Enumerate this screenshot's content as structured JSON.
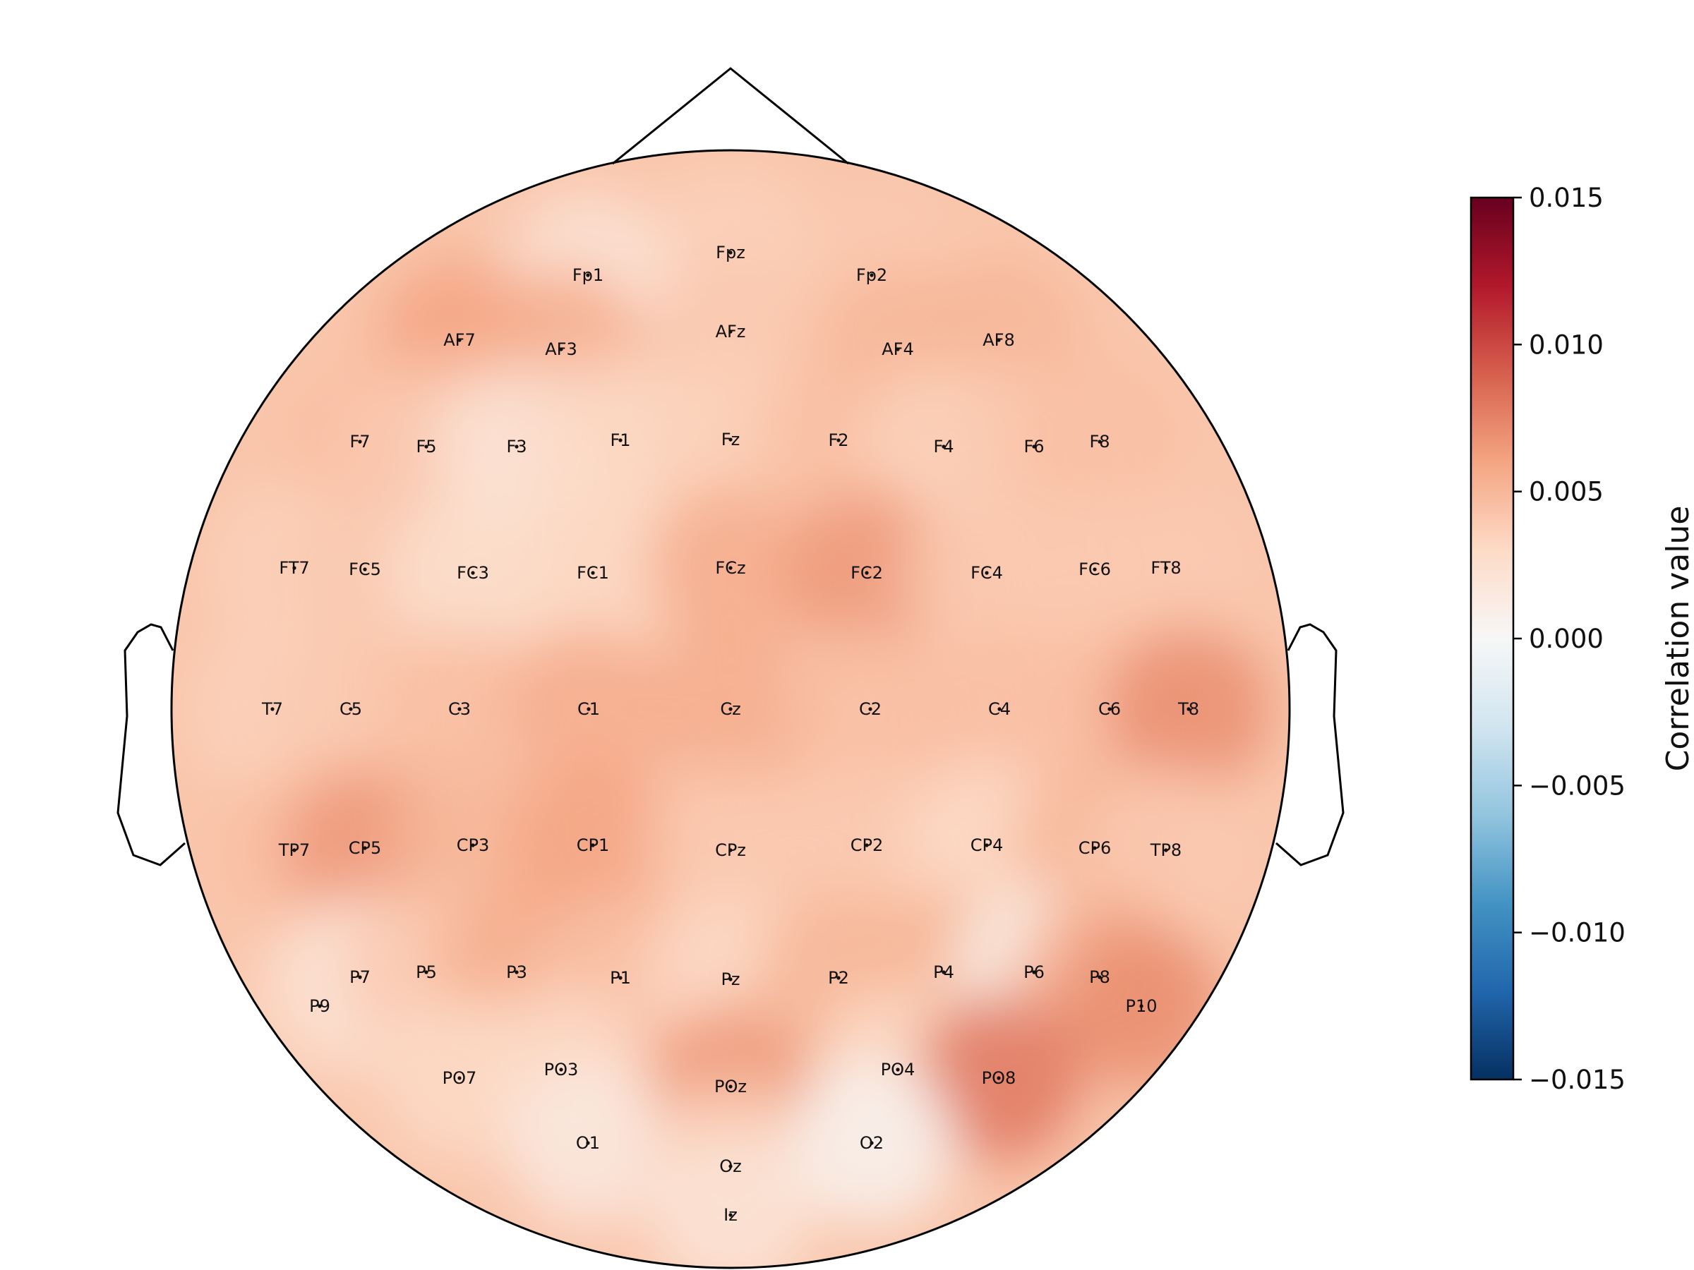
{
  "chart_data": {
    "type": "heatmap",
    "title": "",
    "colorbar": {
      "label": "Correlation value",
      "vmin": -0.015,
      "vmax": 0.015,
      "ticks": [
        "0.015",
        "0.010",
        "0.005",
        "0.000",
        "−0.005",
        "−0.010",
        "−0.015"
      ],
      "tick_values": [
        0.015,
        0.01,
        0.005,
        0.0,
        -0.005,
        -0.01,
        -0.015
      ],
      "colormap": "RdBu_r",
      "stops": [
        "#053061",
        "#2166ac",
        "#4393c3",
        "#92c5de",
        "#d1e5f0",
        "#f7f7f7",
        "#fddbc7",
        "#f4a582",
        "#d6604d",
        "#b2182b",
        "#67001f"
      ]
    },
    "electrodes": [
      {
        "name": "Fpz",
        "value": 0.0035
      },
      {
        "name": "Fp1",
        "value": 0.002
      },
      {
        "name": "Fp2",
        "value": 0.004
      },
      {
        "name": "AF7",
        "value": 0.006
      },
      {
        "name": "AF3",
        "value": 0.0055
      },
      {
        "name": "AFz",
        "value": 0.004
      },
      {
        "name": "AF4",
        "value": 0.005
      },
      {
        "name": "AF8",
        "value": 0.005
      },
      {
        "name": "F7",
        "value": 0.0045
      },
      {
        "name": "F5",
        "value": 0.004
      },
      {
        "name": "F3",
        "value": 0.002
      },
      {
        "name": "F1",
        "value": 0.003
      },
      {
        "name": "Fz",
        "value": 0.0035
      },
      {
        "name": "F2",
        "value": 0.0045
      },
      {
        "name": "F4",
        "value": 0.0035
      },
      {
        "name": "F6",
        "value": 0.004
      },
      {
        "name": "F8",
        "value": 0.0045
      },
      {
        "name": "FT7",
        "value": 0.0035
      },
      {
        "name": "FC5",
        "value": 0.004
      },
      {
        "name": "FC3",
        "value": 0.0025
      },
      {
        "name": "FC1",
        "value": 0.003
      },
      {
        "name": "FCz",
        "value": 0.0055
      },
      {
        "name": "FC2",
        "value": 0.0065
      },
      {
        "name": "FC4",
        "value": 0.004
      },
      {
        "name": "FC6",
        "value": 0.004
      },
      {
        "name": "FT8",
        "value": 0.004
      },
      {
        "name": "T7",
        "value": 0.0035
      },
      {
        "name": "C5",
        "value": 0.004
      },
      {
        "name": "C3",
        "value": 0.0045
      },
      {
        "name": "C1",
        "value": 0.0055
      },
      {
        "name": "Cz",
        "value": 0.0055
      },
      {
        "name": "C2",
        "value": 0.0045
      },
      {
        "name": "C4",
        "value": 0.0045
      },
      {
        "name": "C6",
        "value": 0.0045
      },
      {
        "name": "T8",
        "value": 0.007
      },
      {
        "name": "TP7",
        "value": 0.0045
      },
      {
        "name": "CP5",
        "value": 0.0065
      },
      {
        "name": "CP3",
        "value": 0.005
      },
      {
        "name": "CP1",
        "value": 0.006
      },
      {
        "name": "CPz",
        "value": 0.004
      },
      {
        "name": "CP2",
        "value": 0.004
      },
      {
        "name": "CP4",
        "value": 0.003
      },
      {
        "name": "CP6",
        "value": 0.005
      },
      {
        "name": "TP8",
        "value": 0.004
      },
      {
        "name": "P9",
        "value": 0.0035
      },
      {
        "name": "P7",
        "value": 0.002
      },
      {
        "name": "P5",
        "value": 0.004
      },
      {
        "name": "P3",
        "value": 0.0055
      },
      {
        "name": "P1",
        "value": 0.0045
      },
      {
        "name": "Pz",
        "value": 0.003
      },
      {
        "name": "P2",
        "value": 0.005
      },
      {
        "name": "P4",
        "value": 0.005
      },
      {
        "name": "P6",
        "value": 0.001
      },
      {
        "name": "P8",
        "value": 0.0055
      },
      {
        "name": "P10",
        "value": 0.007
      },
      {
        "name": "PO7",
        "value": 0.003
      },
      {
        "name": "PO3",
        "value": 0.003
      },
      {
        "name": "POz",
        "value": 0.0065
      },
      {
        "name": "PO4",
        "value": 0.003
      },
      {
        "name": "PO8",
        "value": 0.008
      },
      {
        "name": "O1",
        "value": 0.0015
      },
      {
        "name": "Oz",
        "value": 0.0035
      },
      {
        "name": "O2",
        "value": 0.0005
      },
      {
        "name": "Iz",
        "value": 0.002
      }
    ]
  }
}
